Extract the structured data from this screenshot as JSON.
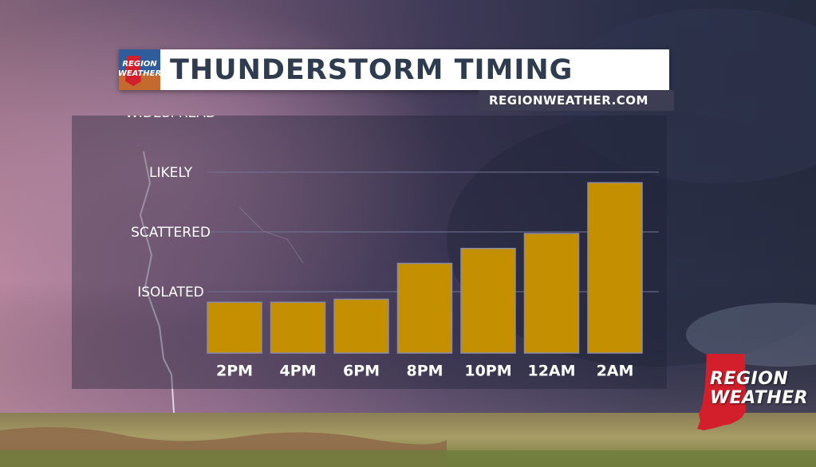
{
  "title": "THUNDERSTORM TIMING",
  "website": "REGIONWEATHER.COM",
  "logo": {
    "small_line1": "REGION",
    "small_line2": "WEATHER",
    "big_line1": "REGION",
    "big_line2": "WEATHER"
  },
  "colors": {
    "bar_fill": "#c48f00",
    "bar_stroke": "#8a8aa8",
    "title_text": "#2f3b4f",
    "logo_red": "#d21f2b"
  },
  "chart_data": {
    "type": "bar",
    "title": "THUNDERSTORM TIMING",
    "categories": [
      "2PM",
      "4PM",
      "6PM",
      "8PM",
      "10PM",
      "12AM",
      "2AM"
    ],
    "values": [
      0.85,
      0.85,
      0.9,
      1.5,
      1.75,
      2.0,
      2.85
    ],
    "y_levels": [
      "ISOLATED",
      "SCATTERED",
      "LIKELY",
      "WIDESPREAD"
    ],
    "y_level_values": [
      1,
      2,
      3,
      4
    ],
    "ylim": [
      0,
      4
    ],
    "grid": true,
    "legend": "none"
  }
}
